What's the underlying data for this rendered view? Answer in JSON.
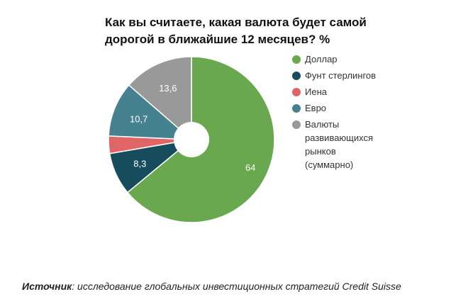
{
  "chart_data": {
    "type": "pie",
    "title": "Как вы считаете, какая валюта будет самой дорогой в ближайшие 12 месяцев? %",
    "slices": [
      {
        "name": "Доллар",
        "value": 64,
        "label": "64",
        "color": "#6aa84f"
      },
      {
        "name": "Фунт стерлингов",
        "value": 8.3,
        "label": "8,3",
        "color": "#174c5c"
      },
      {
        "name": "Иена",
        "value": 3.4,
        "label": null,
        "color": "#e06666"
      },
      {
        "name": "Евро",
        "value": 10.7,
        "label": "10,7",
        "color": "#45818e"
      },
      {
        "name": "Валюты развивающихся рынков (суммарно)",
        "value": 13.6,
        "label": "13,6",
        "color": "#999999"
      }
    ],
    "legend_position": "right",
    "donut": true
  },
  "source": {
    "label": "Источник",
    "text": ": исследование глобальных инвестиционных стратегий Credit Suisse"
  }
}
